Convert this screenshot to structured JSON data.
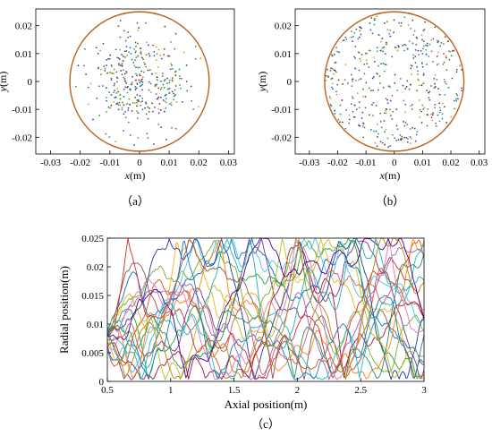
{
  "figure_caption_labels": [
    "（a）",
    "（b）",
    "（c）"
  ],
  "chart_data": [
    {
      "panel": "a",
      "type": "scatter",
      "xlabel_var": "x",
      "xlabel_unit": "(m)",
      "ylabel_var": "y",
      "ylabel_unit": "(m)",
      "xlim": [
        -0.035,
        0.032
      ],
      "ylim": [
        -0.026,
        0.026
      ],
      "xticks": [
        "-0.03",
        "-0.02",
        "-0.01",
        "0",
        "0.01",
        "0.02",
        "0.03"
      ],
      "yticks": [
        "0.02",
        "0.01",
        "0",
        "-0.01",
        "-0.02"
      ],
      "boundary_radius": 0.025,
      "boundary_color": "#b8641e",
      "distribution": "clustered near center",
      "point_count": 360,
      "point_colors": [
        "#1f4e9c",
        "#2a9d8f",
        "#6a3d9a",
        "#3a7d2a",
        "#c8a200",
        "#7a2b2b",
        "#2b6cb0",
        "#5b8c3e"
      ],
      "grid": false,
      "legend": "none"
    },
    {
      "panel": "b",
      "type": "scatter",
      "xlabel_var": "x",
      "xlabel_unit": "(m)",
      "ylabel_var": "y",
      "ylabel_unit": "(m)",
      "xlim": [
        -0.035,
        0.032
      ],
      "ylim": [
        -0.026,
        0.026
      ],
      "xticks": [
        "-0.03",
        "-0.02",
        "-0.01",
        "0",
        "0.01",
        "0.02",
        "0.03"
      ],
      "yticks": [
        "0.02",
        "0.01",
        "0",
        "-0.01",
        "-0.02"
      ],
      "boundary_radius": 0.025,
      "boundary_color": "#b8641e",
      "distribution": "uniform across cross-section",
      "point_count": 430,
      "point_colors": [
        "#1f4e9c",
        "#2a9d8f",
        "#6a3d9a",
        "#3a7d2a",
        "#c8a200",
        "#7a2b2b",
        "#2b6cb0",
        "#5b8c3e"
      ],
      "grid": false,
      "legend": "none"
    },
    {
      "panel": "c",
      "type": "line",
      "xlabel": "Axial position(m)",
      "ylabel": "Radial position(m)",
      "xlim": [
        0.5,
        3.0
      ],
      "ylim": [
        0,
        0.025
      ],
      "xticks": [
        "0.5",
        "1",
        "1.5",
        "2",
        "2.5",
        "3"
      ],
      "yticks": [
        "0.025",
        "0.02",
        "0.015",
        "0.01",
        "0.005",
        "0"
      ],
      "series_count": 22,
      "series_colors": [
        "#0072bd",
        "#d95319",
        "#edb120",
        "#7e2f8e",
        "#77ac30",
        "#4dbeee",
        "#a2142f",
        "#1f3a93",
        "#2ca02c",
        "#ff7f0e",
        "#9467bd",
        "#8c564b",
        "#17becf",
        "#bcbd22",
        "#1f77b4",
        "#d62728",
        "#e377c2",
        "#2e8b57",
        "#b8860b",
        "#4b0082",
        "#20b2aa",
        "#cd5c5c"
      ],
      "series_start_radius": 0.008,
      "wall_radius": 0.025,
      "grid": false,
      "legend": "none"
    }
  ]
}
